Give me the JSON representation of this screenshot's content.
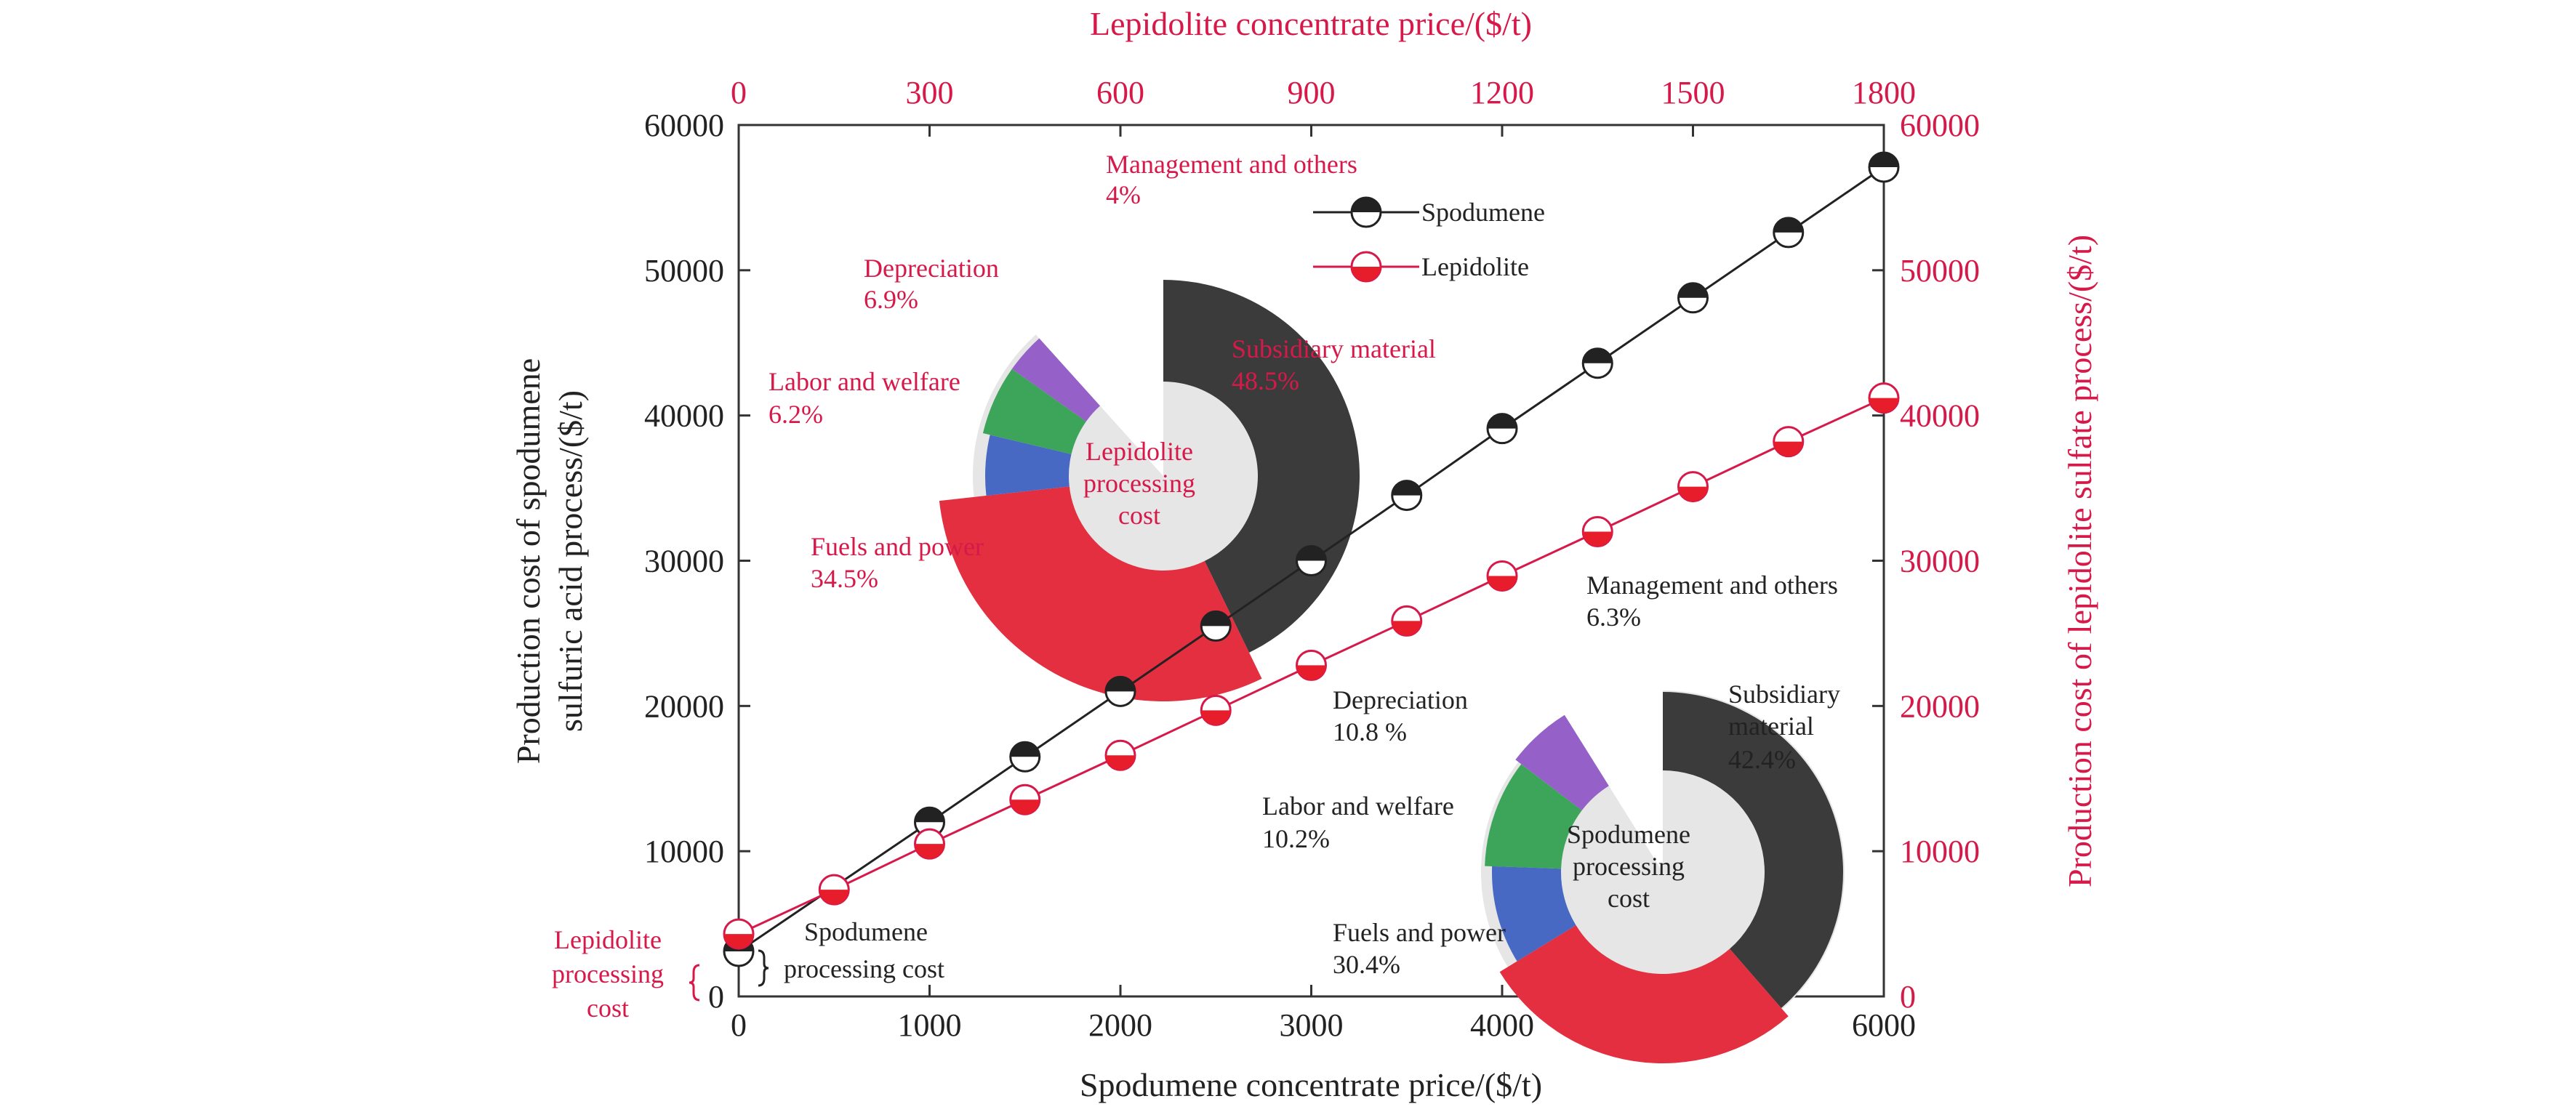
{
  "chart_data": {
    "type": "line",
    "x_bottom": {
      "label": "Spodumene concentrate price/($/t)",
      "ticks": [
        0,
        1000,
        2000,
        3000,
        4000,
        5000,
        6000
      ],
      "range": [
        0,
        6000
      ]
    },
    "x_top": {
      "label": "Lepidolite concentrate price/($/t)",
      "ticks": [
        0,
        300,
        600,
        900,
        1200,
        1500,
        1800
      ],
      "range": [
        0,
        1800
      ]
    },
    "y_left": {
      "label_line1": "Production cost of spodumene",
      "label_line2": "sulfuric acid process/($/t)",
      "ticks": [
        0,
        10000,
        20000,
        30000,
        40000,
        50000,
        60000
      ],
      "range": [
        0,
        60000
      ]
    },
    "y_right": {
      "label": "Production cost of lepidolite sulfate process/($/t)",
      "ticks": [
        0,
        10000,
        20000,
        30000,
        40000,
        50000,
        60000
      ],
      "range": [
        0,
        60000
      ]
    },
    "series": [
      {
        "name": "Spodumene",
        "color": "#222222",
        "x": [
          0,
          1000,
          1500,
          2000,
          2500,
          3000,
          3500,
          4000,
          4500,
          5000,
          5500,
          6000
        ],
        "y": [
          3100,
          12000,
          16500,
          21000,
          25500,
          30000,
          34500,
          39100,
          43600,
          48100,
          52600,
          57100
        ]
      },
      {
        "name": "Lepidolite",
        "color": "#d7194a",
        "x": [
          0,
          150,
          300,
          450,
          600,
          750,
          900,
          1050,
          1200,
          1350,
          1500,
          1650,
          1800
        ],
        "y": [
          4300,
          7350,
          10500,
          13550,
          16600,
          19700,
          22800,
          25850,
          28950,
          32000,
          35100,
          38200,
          41200
        ]
      }
    ],
    "legend": {
      "position": "top-center",
      "entries": [
        "Spodumene",
        "Lepidolite"
      ]
    },
    "grid": false,
    "insets": [
      {
        "title_lines": [
          "Lepidolite",
          "processing",
          "cost"
        ],
        "color_theme": "#d7194a",
        "slices": [
          {
            "name": "Subsidiary material",
            "value": 48.5,
            "pct": "48.5%",
            "color": "#3b3b3b"
          },
          {
            "name": "Fuels and power",
            "value": 34.5,
            "pct": "34.5%",
            "color": "#e32f40"
          },
          {
            "name": "Labor and welfare",
            "value": 6.2,
            "pct": "6.2%",
            "color": "#4769c3"
          },
          {
            "name": "Depreciation",
            "value": 6.9,
            "pct": "6.9%",
            "color": "#3ca55a"
          },
          {
            "name": "Management and others",
            "value": 4,
            "pct": "4%",
            "color": "#9560c8"
          }
        ]
      },
      {
        "title_lines": [
          "Spodumene",
          "processing",
          "cost"
        ],
        "color_theme": "#222222",
        "slices": [
          {
            "name": "Subsidiary material",
            "label_lines": [
              "Subsidiary",
              "material"
            ],
            "value": 42.4,
            "pct": "42.4%",
            "color": "#3b3b3b"
          },
          {
            "name": "Fuels and power",
            "value": 30.4,
            "pct": "30.4%",
            "color": "#e32f40"
          },
          {
            "name": "Labor and welfare",
            "value": 10.2,
            "pct": "10.2%",
            "color": "#4769c3"
          },
          {
            "name": "Depreciation",
            "value": 10.8,
            "pct": "10.8  %",
            "color": "#3ca55a"
          },
          {
            "name": "Management and others",
            "value": 6.3,
            "pct": "6.3%",
            "color": "#9560c8"
          }
        ]
      }
    ],
    "annotations": {
      "lepidolite_processing_cost_lines": [
        "Lepidolite",
        "processing",
        "cost"
      ],
      "spodumene_processing_cost_lines": [
        "Spodumene",
        "processing cost"
      ]
    }
  }
}
